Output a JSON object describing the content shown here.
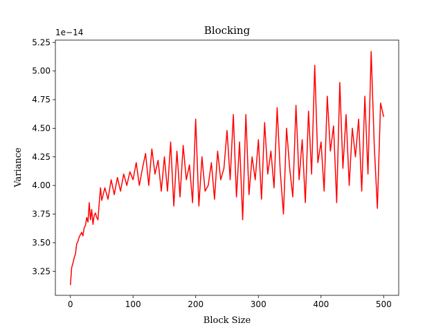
{
  "chart_data": {
    "type": "line",
    "title": "Blocking",
    "xlabel": "Block Size",
    "ylabel": "Variance",
    "y_offset_label": "1e−14",
    "xlim": [
      -24,
      524
    ],
    "ylim": [
      3.04,
      5.27
    ],
    "xticks": [
      0,
      100,
      200,
      300,
      400,
      500
    ],
    "xtick_labels": [
      "0",
      "100",
      "200",
      "300",
      "400",
      "500"
    ],
    "yticks": [
      3.25,
      3.5,
      3.75,
      4.0,
      4.25,
      4.5,
      4.75,
      5.0,
      5.25
    ],
    "ytick_labels": [
      "3.25",
      "3.50",
      "3.75",
      "4.00",
      "4.25",
      "4.50",
      "4.75",
      "5.00",
      "5.25"
    ],
    "grid": false,
    "legend": "none",
    "line_color": "#ff0000",
    "series": [
      {
        "x": [
          0,
          2,
          4,
          6,
          8,
          10,
          12,
          14,
          16,
          18,
          20,
          22,
          24,
          26,
          28,
          30,
          32,
          34,
          36,
          38,
          40,
          42,
          44,
          46,
          48,
          50,
          55,
          60,
          65,
          70,
          75,
          80,
          85,
          90,
          95,
          100,
          105,
          110,
          115,
          120,
          125,
          130,
          135,
          140,
          145,
          150,
          155,
          160,
          165,
          170,
          175,
          180,
          185,
          190,
          195,
          200,
          205,
          210,
          215,
          220,
          225,
          230,
          235,
          240,
          245,
          250,
          255,
          260,
          265,
          270,
          275,
          280,
          285,
          290,
          295,
          300,
          305,
          310,
          315,
          320,
          325,
          330,
          335,
          340,
          345,
          350,
          355,
          360,
          365,
          370,
          375,
          380,
          385,
          390,
          395,
          400,
          405,
          410,
          415,
          420,
          425,
          430,
          435,
          440,
          445,
          450,
          455,
          460,
          465,
          470,
          475,
          480,
          485,
          490,
          495,
          500
        ],
        "y": [
          3.13,
          3.28,
          3.32,
          3.37,
          3.4,
          3.49,
          3.51,
          3.55,
          3.57,
          3.59,
          3.56,
          3.63,
          3.65,
          3.72,
          3.68,
          3.85,
          3.7,
          3.79,
          3.66,
          3.74,
          3.76,
          3.72,
          3.7,
          3.85,
          3.98,
          3.87,
          3.98,
          3.88,
          4.05,
          3.92,
          4.07,
          3.95,
          4.1,
          4.0,
          4.12,
          4.05,
          4.2,
          4.0,
          4.15,
          4.28,
          4.0,
          4.32,
          4.1,
          4.22,
          3.95,
          4.25,
          3.95,
          4.38,
          3.82,
          4.3,
          3.9,
          4.35,
          4.05,
          4.18,
          3.85,
          4.58,
          3.82,
          4.25,
          3.95,
          4.0,
          4.2,
          3.88,
          4.3,
          4.05,
          4.15,
          4.48,
          4.05,
          4.62,
          3.9,
          4.38,
          3.7,
          4.62,
          3.92,
          4.25,
          4.05,
          4.4,
          3.88,
          4.55,
          4.1,
          4.3,
          3.98,
          4.68,
          4.12,
          3.75,
          4.5,
          4.15,
          3.9,
          4.7,
          4.05,
          4.4,
          3.85,
          4.65,
          4.1,
          5.05,
          4.2,
          4.38,
          3.95,
          4.78,
          4.3,
          4.52,
          3.85,
          4.9,
          4.15,
          4.62,
          4.0,
          4.5,
          4.25,
          4.58,
          3.95,
          4.78,
          4.1,
          5.17,
          4.35,
          3.8,
          4.72,
          4.6
        ]
      }
    ]
  }
}
